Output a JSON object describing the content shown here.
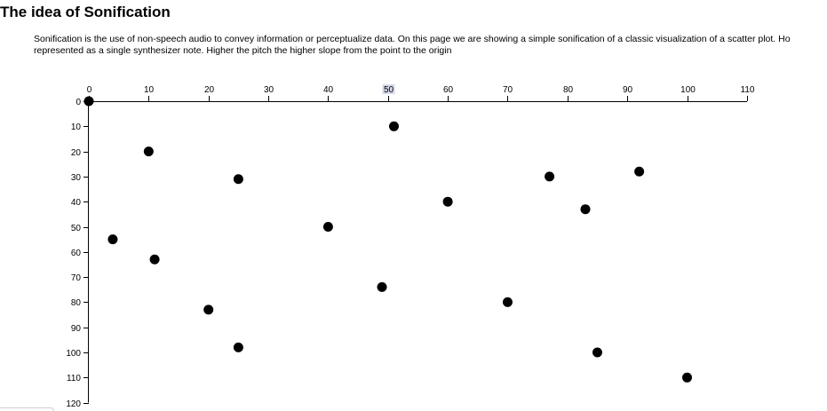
{
  "page": {
    "title": "The idea of Sonification",
    "intro_line1": "Sonification is the use of non-speech audio to convey information or perceptualize data. On this page we are showing a simple sonification of a classic visualization of a scatter plot. Ho",
    "intro_line2": "represented as a single synthesizer note. Higher the pitch the higher slope from the point to the origin"
  },
  "chart_data": {
    "type": "scatter",
    "title": "",
    "xlabel": "",
    "ylabel": "",
    "x_axis_position": "top",
    "y_axis_inverted": true,
    "xlim": [
      0,
      110
    ],
    "ylim": [
      0,
      120
    ],
    "x_ticks": [
      0,
      10,
      20,
      30,
      40,
      50,
      60,
      70,
      80,
      90,
      100,
      110
    ],
    "y_ticks": [
      0,
      10,
      20,
      30,
      40,
      50,
      60,
      70,
      80,
      90,
      100,
      110,
      120
    ],
    "highlighted_x_tick": 50,
    "highlight_color": "#d6d9ea",
    "point_color": "#000000",
    "grid": false,
    "points": [
      {
        "x": 0,
        "y": 0
      },
      {
        "x": 4,
        "y": 55
      },
      {
        "x": 10,
        "y": 20
      },
      {
        "x": 11,
        "y": 63
      },
      {
        "x": 20,
        "y": 83
      },
      {
        "x": 25,
        "y": 31
      },
      {
        "x": 25,
        "y": 98
      },
      {
        "x": 40,
        "y": 50
      },
      {
        "x": 49,
        "y": 74
      },
      {
        "x": 51,
        "y": 10
      },
      {
        "x": 60,
        "y": 40
      },
      {
        "x": 70,
        "y": 80
      },
      {
        "x": 77,
        "y": 30
      },
      {
        "x": 83,
        "y": 43
      },
      {
        "x": 85,
        "y": 100
      },
      {
        "x": 92,
        "y": 28
      },
      {
        "x": 100,
        "y": 110
      }
    ]
  }
}
